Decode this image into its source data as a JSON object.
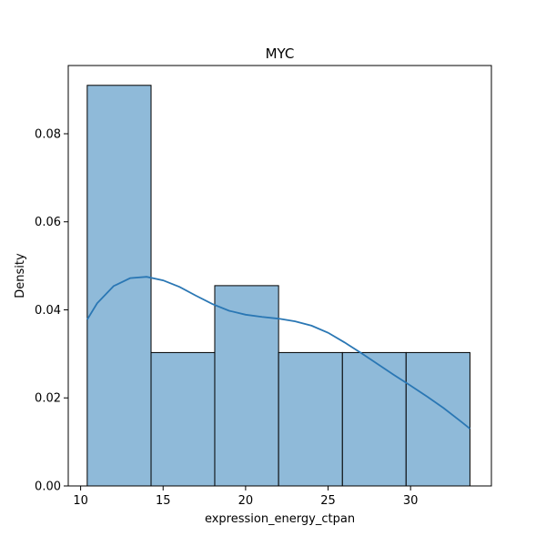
{
  "chart_data": {
    "type": "bar",
    "title": "MYC",
    "xlabel": "expression_energy_ctpan",
    "ylabel": "Density",
    "xlim": [
      9.25,
      34.9
    ],
    "ylim": [
      0,
      0.0955
    ],
    "xticks": [
      10,
      15,
      20,
      25,
      30
    ],
    "xtick_labels": [
      "10",
      "15",
      "20",
      "25",
      "30"
    ],
    "yticks": [
      0.0,
      0.02,
      0.04,
      0.06,
      0.08
    ],
    "ytick_labels": [
      "0.00",
      "0.02",
      "0.04",
      "0.06",
      "0.08"
    ],
    "bins": [
      {
        "start": 10.4,
        "end": 14.27,
        "value": 0.091
      },
      {
        "start": 14.27,
        "end": 18.13,
        "value": 0.0303
      },
      {
        "start": 18.13,
        "end": 22.0,
        "value": 0.0455
      },
      {
        "start": 22.0,
        "end": 25.87,
        "value": 0.0303
      },
      {
        "start": 25.87,
        "end": 29.73,
        "value": 0.0303
      },
      {
        "start": 29.73,
        "end": 33.6,
        "value": 0.0303
      }
    ],
    "kde": {
      "x": [
        10.4,
        11.0,
        12.0,
        13.0,
        14.0,
        15.0,
        16.0,
        17.0,
        18.0,
        19.0,
        20.0,
        21.0,
        22.0,
        23.0,
        24.0,
        25.0,
        26.0,
        27.0,
        28.0,
        29.0,
        30.0,
        31.0,
        32.0,
        33.0,
        33.6
      ],
      "y": [
        0.0378,
        0.0415,
        0.0454,
        0.0472,
        0.0475,
        0.0467,
        0.0452,
        0.0432,
        0.0413,
        0.0398,
        0.0389,
        0.0384,
        0.038,
        0.0374,
        0.0364,
        0.0348,
        0.0326,
        0.0302,
        0.0277,
        0.0252,
        0.0228,
        0.0203,
        0.0177,
        0.0148,
        0.013
      ]
    },
    "colors": {
      "bar_fill": "#8fbad9",
      "bar_edge": "#000000",
      "kde_line": "#2a77b4"
    },
    "grid": false,
    "legend": "none"
  }
}
